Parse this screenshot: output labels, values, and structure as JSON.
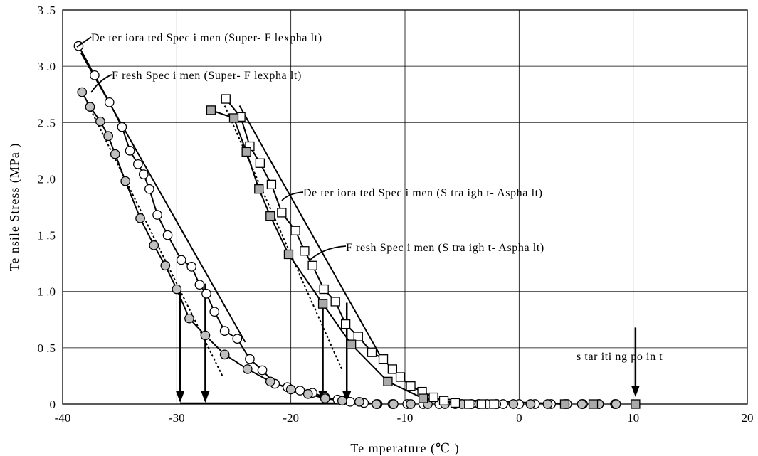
{
  "chart_data": {
    "type": "scatter",
    "title": "",
    "xlabel": "Te mperature (℃ )",
    "ylabel": "Te nsile Stress (MPa )",
    "xlim": [
      -40,
      20
    ],
    "ylim": [
      0,
      3.5
    ],
    "grid": true,
    "x_ticks": [
      -40,
      -30,
      -20,
      -10,
      0,
      10,
      20
    ],
    "x_tick_labels": [
      "-40",
      "-30",
      "-20",
      "-10",
      "0",
      "10",
      "20"
    ],
    "y_ticks": [
      0,
      0.5,
      1.0,
      1.5,
      2.0,
      2.5,
      3.0,
      3.5
    ],
    "y_tick_labels": [
      "0",
      "0 .5",
      "1 .0",
      "1 .5",
      "2 .0",
      "2 .5",
      "3 .0",
      "3 .5"
    ],
    "series": [
      {
        "name": "De ter iora ted Spec i men (Super- F lexpha lt)",
        "marker": "circle",
        "fill": "#ffffff",
        "x": [
          -38.6,
          -37.2,
          -35.9,
          -34.8,
          -34.1,
          -33.4,
          -32.9,
          -32.4,
          -31.7,
          -30.8,
          -29.6,
          -28.7,
          -28.0,
          -27.4,
          -26.7,
          -25.8,
          -24.7,
          -23.6,
          -22.5,
          -21.4,
          -20.3,
          -19.2,
          -18.1,
          -17.0,
          -15.9,
          -14.8,
          -13.6,
          -12.4,
          -11.1,
          -9.8,
          -8.4,
          -7.0,
          -5.6,
          -4.2,
          -2.8,
          -1.4,
          0.0,
          1.4,
          2.8,
          4.2,
          5.6,
          7.0,
          8.4
        ],
        "y": [
          3.18,
          2.92,
          2.68,
          2.46,
          2.25,
          2.13,
          2.04,
          1.91,
          1.68,
          1.5,
          1.28,
          1.22,
          1.06,
          0.98,
          0.82,
          0.65,
          0.58,
          0.4,
          0.3,
          0.18,
          0.15,
          0.12,
          0.1,
          0.06,
          0.04,
          0.02,
          0.01,
          0.0,
          0.0,
          0.0,
          0.0,
          0.0,
          0.0,
          0.0,
          0.0,
          0.0,
          0.0,
          0.0,
          0.0,
          0.0,
          0.0,
          0.0,
          0.0
        ]
      },
      {
        "name": "F resh Spec i men (Super- F lexpha lt)",
        "marker": "circle",
        "fill": "#c0c0c0",
        "x": [
          -38.3,
          -37.6,
          -36.7,
          -36.0,
          -35.4,
          -34.5,
          -33.2,
          -32.0,
          -31.0,
          -30.0,
          -28.9,
          -27.5,
          -25.8,
          -23.8,
          -21.8,
          -20.0,
          -18.5,
          -17.0,
          -15.5,
          -14.0,
          -12.5,
          -11.0,
          -9.5,
          -8.0,
          -6.5,
          -5.0,
          -3.5,
          -2.0,
          -0.5,
          1.0,
          2.5,
          4.0,
          5.5,
          7.0,
          8.5
        ],
        "y": [
          2.77,
          2.64,
          2.51,
          2.38,
          2.22,
          1.98,
          1.65,
          1.41,
          1.23,
          1.02,
          0.76,
          0.61,
          0.44,
          0.31,
          0.2,
          0.13,
          0.09,
          0.05,
          0.03,
          0.02,
          0.0,
          0.0,
          0.0,
          0.0,
          0.0,
          0.0,
          0.0,
          0.0,
          0.0,
          0.0,
          0.0,
          0.0,
          0.0,
          0.0,
          0.0
        ]
      },
      {
        "name": "De ter iora ted Spec i men (S tra igh t- Aspha lt)",
        "marker": "square",
        "fill": "#ffffff",
        "x": [
          -25.7,
          -24.4,
          -23.6,
          -22.7,
          -21.7,
          -20.8,
          -19.6,
          -18.8,
          -18.1,
          -17.1,
          -16.1,
          -15.2,
          -14.1,
          -12.9,
          -11.9,
          -11.1,
          -10.4,
          -9.5,
          -8.5,
          -7.5,
          -6.6,
          -5.6,
          -4.4,
          -3.3,
          -2.2
        ],
        "y": [
          2.71,
          2.55,
          2.29,
          2.14,
          1.95,
          1.7,
          1.54,
          1.36,
          1.23,
          1.02,
          0.91,
          0.71,
          0.6,
          0.46,
          0.4,
          0.31,
          0.24,
          0.16,
          0.11,
          0.06,
          0.03,
          0.01,
          0.0,
          0.0,
          0.0
        ]
      },
      {
        "name": "F resh Spec i men (S tra igh t- Aspha lt)",
        "marker": "square",
        "fill": "#a9a9a9",
        "x": [
          -27.0,
          -25.0,
          -23.9,
          -22.8,
          -21.8,
          -20.2,
          -17.2,
          -14.7,
          -11.5,
          -8.4,
          4.0,
          6.5,
          10.2
        ],
        "y": [
          2.61,
          2.54,
          2.24,
          1.91,
          1.67,
          1.33,
          0.89,
          0.53,
          0.2,
          0.05,
          0.0,
          0.0,
          0.0
        ]
      }
    ],
    "critical_temperatures": [
      -29.7,
      -27.5,
      -17.2,
      -15.1
    ],
    "annotations": [
      {
        "text": "De ter iora ted Spec i men (Super- F lexpha lt)",
        "x": -38.6,
        "y": 3.18
      },
      {
        "text": "F resh Spec i men (Super- F lexpha lt)",
        "x": -37.6,
        "y": 2.77
      },
      {
        "text": "De ter iora ted Spec i men (S tra igh t- Aspha lt)",
        "x": -20.0,
        "y": 1.85
      },
      {
        "text": "F resh Spec i men (S tra igh t- Aspha lt)",
        "x": -18.5,
        "y": 1.33
      },
      {
        "text": "s tar iti ng po in t",
        "x": 10.2,
        "y": 0.0
      }
    ]
  }
}
